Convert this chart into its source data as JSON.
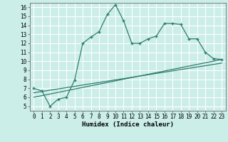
{
  "title": "",
  "xlabel": "Humidex (Indice chaleur)",
  "ylabel": "",
  "background_color": "#cceee8",
  "grid_color": "#ffffff",
  "line_color": "#2e7d6e",
  "xlim": [
    -0.5,
    23.5
  ],
  "ylim": [
    4.5,
    16.5
  ],
  "xticks": [
    0,
    1,
    2,
    3,
    4,
    5,
    6,
    7,
    8,
    9,
    10,
    11,
    12,
    13,
    14,
    15,
    16,
    17,
    18,
    19,
    20,
    21,
    22,
    23
  ],
  "yticks": [
    5,
    6,
    7,
    8,
    9,
    10,
    11,
    12,
    13,
    14,
    15,
    16
  ],
  "series1_x": [
    0,
    1,
    2,
    3,
    4,
    5,
    6,
    7,
    8,
    9,
    10,
    11,
    12,
    13,
    14,
    15,
    16,
    17,
    18,
    19,
    20,
    21,
    22,
    23
  ],
  "series1_y": [
    7.0,
    6.7,
    5.0,
    5.8,
    6.0,
    7.9,
    12.0,
    12.7,
    13.3,
    15.2,
    16.3,
    14.5,
    12.0,
    12.0,
    12.5,
    12.8,
    14.2,
    14.2,
    14.1,
    12.5,
    12.5,
    11.0,
    10.3,
    10.2
  ],
  "series2_x": [
    0,
    23
  ],
  "series2_y": [
    6.0,
    10.2
  ],
  "series3_x": [
    0,
    23
  ],
  "series3_y": [
    6.5,
    9.8
  ],
  "tick_fontsize": 5.5,
  "xlabel_fontsize": 6.5
}
